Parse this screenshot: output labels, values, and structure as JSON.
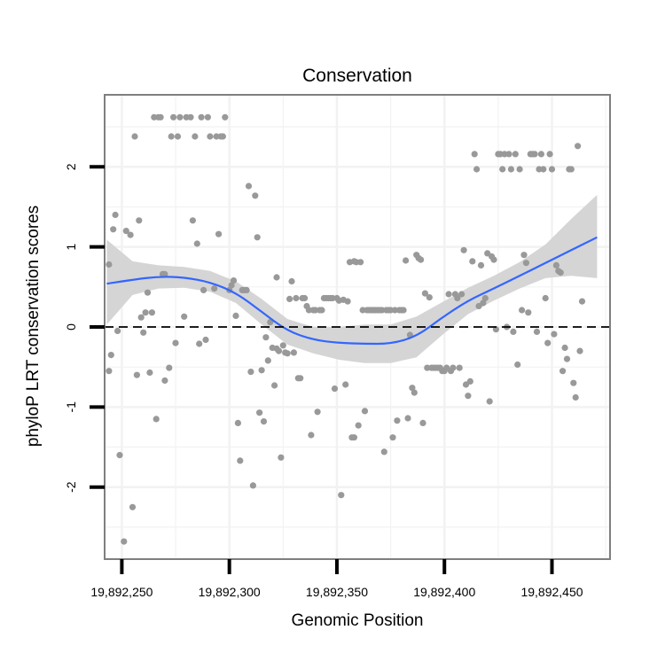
{
  "chart_data": {
    "type": "scatter",
    "title": "Conservation",
    "xlabel": "Genomic Position",
    "ylabel": "phyloP LRT conservation scores",
    "xlim": [
      19892242,
      19892477
    ],
    "ylim": [
      -2.9,
      2.9
    ],
    "x_ticks": [
      19892250,
      19892300,
      19892350,
      19892400,
      19892450
    ],
    "x_tick_labels": [
      "19,892,250",
      "19,892,300",
      "19,892,350",
      "19,892,400",
      "19,892,450"
    ],
    "y_ticks": [
      -2,
      -1,
      0,
      1,
      2
    ],
    "y_tick_labels": [
      "-2",
      "-1",
      "0",
      "1",
      "2"
    ],
    "grid": true,
    "reference_line": {
      "y": 0,
      "style": "dashed"
    },
    "colors": {
      "points": "#999999",
      "smooth_line": "#3366ff",
      "ribbon": "#d3d3d3",
      "grid": "#f2f2f2",
      "panel_border": "#7f7f7f"
    },
    "points": [
      [
        19892244,
        0.78
      ],
      [
        19892244,
        -0.55
      ],
      [
        19892245,
        -0.35
      ],
      [
        19892246,
        1.22
      ],
      [
        19892247,
        1.4
      ],
      [
        19892248,
        -0.05
      ],
      [
        19892249,
        -1.6
      ],
      [
        19892251,
        -2.68
      ],
      [
        19892252,
        1.2
      ],
      [
        19892254,
        1.15
      ],
      [
        19892255,
        -2.25
      ],
      [
        19892256,
        2.38
      ],
      [
        19892257,
        -0.6
      ],
      [
        19892258,
        1.33
      ],
      [
        19892259,
        0.12
      ],
      [
        19892260,
        -0.07
      ],
      [
        19892261,
        0.18
      ],
      [
        19892262,
        0.43
      ],
      [
        19892263,
        -0.57
      ],
      [
        19892264,
        0.18
      ],
      [
        19892265,
        2.62
      ],
      [
        19892266,
        -1.15
      ],
      [
        19892267,
        2.62
      ],
      [
        19892268,
        2.62
      ],
      [
        19892269,
        0.66
      ],
      [
        19892270,
        0.66
      ],
      [
        19892270,
        -0.67
      ],
      [
        19892272,
        -0.51
      ],
      [
        19892273,
        2.38
      ],
      [
        19892274,
        2.62
      ],
      [
        19892275,
        -0.2
      ],
      [
        19892276,
        2.38
      ],
      [
        19892277,
        2.62
      ],
      [
        19892279,
        0.13
      ],
      [
        19892280,
        2.62
      ],
      [
        19892282,
        2.62
      ],
      [
        19892283,
        1.33
      ],
      [
        19892284,
        2.38
      ],
      [
        19892285,
        1.04
      ],
      [
        19892286,
        -0.21
      ],
      [
        19892287,
        2.62
      ],
      [
        19892288,
        0.46
      ],
      [
        19892289,
        -0.16
      ],
      [
        19892290,
        2.62
      ],
      [
        19892291,
        2.38
      ],
      [
        19892293,
        0.48
      ],
      [
        19892294,
        2.38
      ],
      [
        19892295,
        1.16
      ],
      [
        19892296,
        2.38
      ],
      [
        19892297,
        2.38
      ],
      [
        19892298,
        2.62
      ],
      [
        19892300,
        0.46
      ],
      [
        19892301,
        0.52
      ],
      [
        19892302,
        0.58
      ],
      [
        19892303,
        0.14
      ],
      [
        19892304,
        -1.2
      ],
      [
        19892305,
        -1.67
      ],
      [
        19892306,
        0.46
      ],
      [
        19892307,
        0.46
      ],
      [
        19892308,
        0.46
      ],
      [
        19892309,
        1.76
      ],
      [
        19892310,
        -0.56
      ],
      [
        19892311,
        -1.98
      ],
      [
        19892312,
        1.64
      ],
      [
        19892313,
        1.12
      ],
      [
        19892314,
        -1.07
      ],
      [
        19892315,
        -0.54
      ],
      [
        19892316,
        -1.18
      ],
      [
        19892317,
        -0.13
      ],
      [
        19892318,
        -0.42
      ],
      [
        19892319,
        0.06
      ],
      [
        19892320,
        -0.26
      ],
      [
        19892321,
        -0.73
      ],
      [
        19892322,
        0.62
      ],
      [
        19892322,
        -0.27
      ],
      [
        19892323,
        -0.3
      ],
      [
        19892324,
        -1.63
      ],
      [
        19892325,
        -0.23
      ],
      [
        19892326,
        -0.32
      ],
      [
        19892327,
        -0.33
      ],
      [
        19892328,
        0.35
      ],
      [
        19892329,
        0.57
      ],
      [
        19892330,
        -0.32
      ],
      [
        19892331,
        0.36
      ],
      [
        19892332,
        -0.64
      ],
      [
        19892333,
        -0.64
      ],
      [
        19892334,
        0.36
      ],
      [
        19892335,
        0.36
      ],
      [
        19892336,
        0.26
      ],
      [
        19892337,
        0.21
      ],
      [
        19892338,
        -1.35
      ],
      [
        19892339,
        0.21
      ],
      [
        19892340,
        0.21
      ],
      [
        19892341,
        -1.06
      ],
      [
        19892342,
        0.21
      ],
      [
        19892343,
        0.21
      ],
      [
        19892344,
        0.36
      ],
      [
        19892345,
        0.36
      ],
      [
        19892346,
        0.36
      ],
      [
        19892347,
        0.36
      ],
      [
        19892348,
        0.36
      ],
      [
        19892349,
        -0.77
      ],
      [
        19892350,
        0.36
      ],
      [
        19892351,
        0.33
      ],
      [
        19892352,
        -2.1
      ],
      [
        19892353,
        0.34
      ],
      [
        19892354,
        -0.72
      ],
      [
        19892355,
        0.32
      ],
      [
        19892356,
        0.81
      ],
      [
        19892357,
        -1.38
      ],
      [
        19892358,
        0.82
      ],
      [
        19892358,
        -1.38
      ],
      [
        19892359,
        0.81
      ],
      [
        19892360,
        -1.23
      ],
      [
        19892361,
        0.81
      ],
      [
        19892362,
        0.21
      ],
      [
        19892363,
        -1.05
      ],
      [
        19892364,
        0.21
      ],
      [
        19892365,
        0.21
      ],
      [
        19892366,
        0.21
      ],
      [
        19892367,
        0.21
      ],
      [
        19892368,
        0.21
      ],
      [
        19892369,
        0.21
      ],
      [
        19892370,
        0.21
      ],
      [
        19892371,
        0.21
      ],
      [
        19892372,
        -1.56
      ],
      [
        19892373,
        0.21
      ],
      [
        19892374,
        0.21
      ],
      [
        19892375,
        0.21
      ],
      [
        19892376,
        -1.38
      ],
      [
        19892377,
        0.21
      ],
      [
        19892378,
        -1.17
      ],
      [
        19892379,
        0.21
      ],
      [
        19892380,
        0.21
      ],
      [
        19892381,
        0.21
      ],
      [
        19892382,
        0.83
      ],
      [
        19892383,
        -1.14
      ],
      [
        19892384,
        -0.1
      ],
      [
        19892385,
        -0.76
      ],
      [
        19892386,
        -0.82
      ],
      [
        19892387,
        0.9
      ],
      [
        19892388,
        0.86
      ],
      [
        19892389,
        0.84
      ],
      [
        19892390,
        -1.2
      ],
      [
        19892391,
        0.42
      ],
      [
        19892392,
        -0.51
      ],
      [
        19892393,
        0.37
      ],
      [
        19892394,
        -0.51
      ],
      [
        19892395,
        -0.51
      ],
      [
        19892396,
        -0.51
      ],
      [
        19892397,
        -0.51
      ],
      [
        19892398,
        -0.51
      ],
      [
        19892399,
        -0.55
      ],
      [
        19892400,
        -0.55
      ],
      [
        19892401,
        -0.51
      ],
      [
        19892402,
        0.41
      ],
      [
        19892403,
        -0.55
      ],
      [
        19892404,
        -0.51
      ],
      [
        19892405,
        0.41
      ],
      [
        19892406,
        0.36
      ],
      [
        19892407,
        -0.51
      ],
      [
        19892408,
        0.41
      ],
      [
        19892409,
        0.96
      ],
      [
        19892410,
        -0.72
      ],
      [
        19892411,
        -0.86
      ],
      [
        19892412,
        -0.68
      ],
      [
        19892413,
        0.82
      ],
      [
        19892414,
        2.16
      ],
      [
        19892415,
        1.97
      ],
      [
        19892416,
        0.26
      ],
      [
        19892417,
        0.77
      ],
      [
        19892418,
        0.3
      ],
      [
        19892419,
        0.36
      ],
      [
        19892420,
        0.92
      ],
      [
        19892421,
        -0.93
      ],
      [
        19892422,
        0.88
      ],
      [
        19892423,
        0.84
      ],
      [
        19892424,
        -0.03
      ],
      [
        19892425,
        2.16
      ],
      [
        19892426,
        2.16
      ],
      [
        19892427,
        1.97
      ],
      [
        19892428,
        2.16
      ],
      [
        19892429,
        0.0
      ],
      [
        19892430,
        2.16
      ],
      [
        19892431,
        1.97
      ],
      [
        19892432,
        -0.06
      ],
      [
        19892433,
        2.16
      ],
      [
        19892434,
        -0.47
      ],
      [
        19892435,
        1.97
      ],
      [
        19892436,
        0.21
      ],
      [
        19892437,
        0.9
      ],
      [
        19892438,
        0.8
      ],
      [
        19892439,
        0.18
      ],
      [
        19892440,
        2.16
      ],
      [
        19892441,
        2.16
      ],
      [
        19892442,
        2.16
      ],
      [
        19892443,
        -0.06
      ],
      [
        19892444,
        1.97
      ],
      [
        19892445,
        2.16
      ],
      [
        19892446,
        1.97
      ],
      [
        19892447,
        0.36
      ],
      [
        19892448,
        -0.2
      ],
      [
        19892449,
        2.16
      ],
      [
        19892450,
        1.97
      ],
      [
        19892451,
        -0.09
      ],
      [
        19892452,
        0.77
      ],
      [
        19892453,
        0.7
      ],
      [
        19892454,
        0.68
      ],
      [
        19892455,
        -0.55
      ],
      [
        19892456,
        -0.26
      ],
      [
        19892457,
        -0.4
      ],
      [
        19892458,
        1.97
      ],
      [
        19892459,
        1.97
      ],
      [
        19892460,
        -0.7
      ],
      [
        19892461,
        -0.88
      ],
      [
        19892462,
        2.26
      ],
      [
        19892463,
        -0.3
      ],
      [
        19892464,
        0.32
      ]
    ],
    "smooth": {
      "x": [
        19892243,
        19892255,
        19892267,
        19892279,
        19892291,
        19892303,
        19892315,
        19892327,
        19892339,
        19892351,
        19892363,
        19892375,
        19892387,
        19892399,
        19892411,
        19892423,
        19892435,
        19892447,
        19892459,
        19892471
      ],
      "y": [
        0.54,
        0.59,
        0.63,
        0.62,
        0.56,
        0.43,
        0.19,
        -0.05,
        -0.16,
        -0.2,
        -0.21,
        -0.21,
        -0.12,
        0.12,
        0.33,
        0.48,
        0.64,
        0.8,
        0.96,
        1.12
      ],
      "lower": [
        0.03,
        0.4,
        0.48,
        0.49,
        0.44,
        0.3,
        0.03,
        -0.22,
        -0.33,
        -0.41,
        -0.45,
        -0.45,
        -0.38,
        -0.1,
        0.16,
        0.33,
        0.48,
        0.61,
        0.64,
        0.61
      ],
      "upper": [
        1.09,
        0.82,
        0.77,
        0.75,
        0.7,
        0.57,
        0.35,
        0.1,
        0.0,
        0.0,
        0.03,
        0.03,
        0.13,
        0.31,
        0.49,
        0.64,
        0.81,
        1.03,
        1.35,
        1.65
      ]
    }
  }
}
